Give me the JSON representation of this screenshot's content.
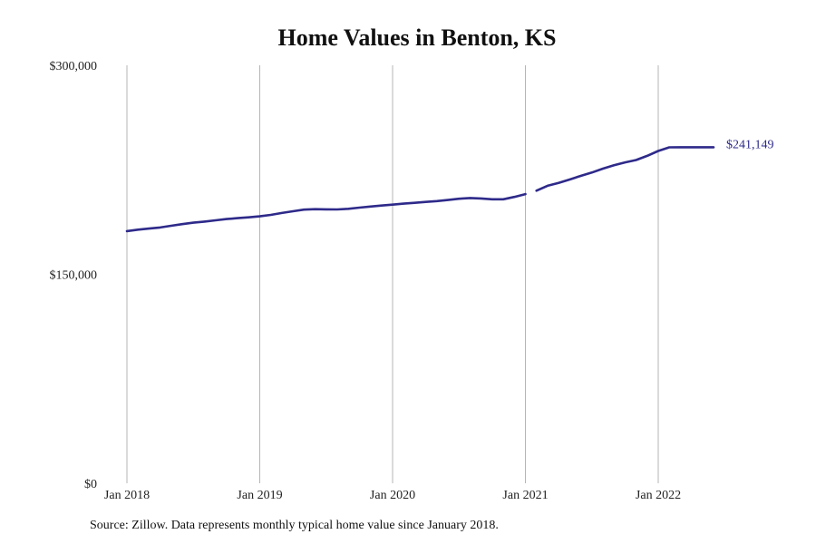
{
  "chart_data": {
    "type": "line",
    "title": "Home Values in Benton, KS",
    "xlabel": "",
    "ylabel": "",
    "ylim": [
      0,
      300000
    ],
    "y_ticks": [
      {
        "value": 0,
        "label": "$0"
      },
      {
        "value": 150000,
        "label": "$150,000"
      },
      {
        "value": 300000,
        "label": "$300,000"
      }
    ],
    "x_ticks": [
      {
        "value": "2018-01",
        "label": "Jan 2018"
      },
      {
        "value": "2019-01",
        "label": "Jan 2019"
      },
      {
        "value": "2020-01",
        "label": "Jan 2020"
      },
      {
        "value": "2021-01",
        "label": "Jan 2021"
      },
      {
        "value": "2022-01",
        "label": "Jan 2022"
      }
    ],
    "grid": {
      "vertical": true,
      "horizontal": false
    },
    "line_color": "#2e2a8a",
    "end_label": "$241,149",
    "series": [
      {
        "segments": [
          [
            {
              "x": "2018-01",
              "y": 181000
            },
            {
              "x": "2018-02",
              "y": 182000
            },
            {
              "x": "2018-03",
              "y": 182800
            },
            {
              "x": "2018-04",
              "y": 183600
            },
            {
              "x": "2018-05",
              "y": 184800
            },
            {
              "x": "2018-06",
              "y": 186000
            },
            {
              "x": "2018-07",
              "y": 187000
            },
            {
              "x": "2018-08",
              "y": 187800
            },
            {
              "x": "2018-09",
              "y": 188700
            },
            {
              "x": "2018-10",
              "y": 189600
            },
            {
              "x": "2018-11",
              "y": 190300
            },
            {
              "x": "2018-12",
              "y": 190900
            },
            {
              "x": "2019-01",
              "y": 191600
            },
            {
              "x": "2019-02",
              "y": 192600
            },
            {
              "x": "2019-03",
              "y": 194000
            },
            {
              "x": "2019-04",
              "y": 195200
            },
            {
              "x": "2019-05",
              "y": 196400
            },
            {
              "x": "2019-06",
              "y": 196700
            },
            {
              "x": "2019-07",
              "y": 196600
            },
            {
              "x": "2019-08",
              "y": 196500
            },
            {
              "x": "2019-09",
              "y": 197000
            },
            {
              "x": "2019-10",
              "y": 197800
            },
            {
              "x": "2019-11",
              "y": 198600
            },
            {
              "x": "2019-12",
              "y": 199300
            },
            {
              "x": "2020-01",
              "y": 200000
            },
            {
              "x": "2020-02",
              "y": 200700
            },
            {
              "x": "2020-03",
              "y": 201300
            },
            {
              "x": "2020-04",
              "y": 201900
            },
            {
              "x": "2020-05",
              "y": 202500
            },
            {
              "x": "2020-06",
              "y": 203300
            },
            {
              "x": "2020-07",
              "y": 204200
            },
            {
              "x": "2020-08",
              "y": 204700
            },
            {
              "x": "2020-09",
              "y": 204400
            },
            {
              "x": "2020-10",
              "y": 203800
            },
            {
              "x": "2020-11",
              "y": 203800
            },
            {
              "x": "2020-12",
              "y": 205500
            },
            {
              "x": "2021-01",
              "y": 207500
            }
          ],
          [
            {
              "x": "2021-02",
              "y": 210000
            },
            {
              "x": "2021-03",
              "y": 213500
            },
            {
              "x": "2021-04",
              "y": 215500
            },
            {
              "x": "2021-05",
              "y": 218000
            },
            {
              "x": "2021-06",
              "y": 220600
            },
            {
              "x": "2021-07",
              "y": 223000
            },
            {
              "x": "2021-08",
              "y": 225800
            },
            {
              "x": "2021-09",
              "y": 228200
            },
            {
              "x": "2021-10",
              "y": 230300
            },
            {
              "x": "2021-11",
              "y": 232000
            },
            {
              "x": "2021-12",
              "y": 235000
            },
            {
              "x": "2022-01",
              "y": 238500
            },
            {
              "x": "2022-02",
              "y": 241100
            },
            {
              "x": "2022-03",
              "y": 241149
            },
            {
              "x": "2022-04",
              "y": 241149
            },
            {
              "x": "2022-05",
              "y": 241149
            },
            {
              "x": "2022-06",
              "y": 241149
            }
          ]
        ]
      }
    ]
  },
  "source_note": "Source: Zillow. Data represents monthly typical home value since January 2018."
}
